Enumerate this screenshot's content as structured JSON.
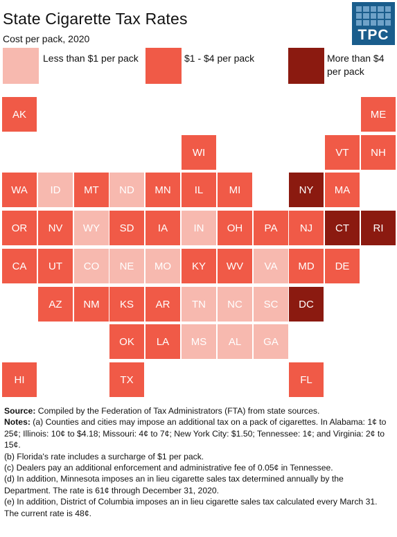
{
  "header": {
    "title": "State Cigarette Tax Rates",
    "subtitle": "Cost per pack, 2020"
  },
  "logo": {
    "text": "TPC"
  },
  "colors": {
    "low": "#f7b9af",
    "mid": "#f05a47",
    "high": "#8b1a10",
    "logo_bg": "#1a5d8c"
  },
  "legend": [
    {
      "label": "Less than $1 per pack",
      "level": "low"
    },
    {
      "label": "$1 - $4 per pack",
      "level": "mid"
    },
    {
      "label": "More than $4 per pack",
      "level": "high"
    }
  ],
  "states": [
    {
      "abbr": "AK",
      "level": "mid",
      "col": 0,
      "row": 0
    },
    {
      "abbr": "ME",
      "level": "mid",
      "col": 10,
      "row": 0
    },
    {
      "abbr": "WI",
      "level": "mid",
      "col": 5,
      "row": 1
    },
    {
      "abbr": "VT",
      "level": "mid",
      "col": 9,
      "row": 1
    },
    {
      "abbr": "NH",
      "level": "mid",
      "col": 10,
      "row": 1
    },
    {
      "abbr": "WA",
      "level": "mid",
      "col": 0,
      "row": 2
    },
    {
      "abbr": "ID",
      "level": "low",
      "col": 1,
      "row": 2
    },
    {
      "abbr": "MT",
      "level": "mid",
      "col": 2,
      "row": 2
    },
    {
      "abbr": "ND",
      "level": "low",
      "col": 3,
      "row": 2
    },
    {
      "abbr": "MN",
      "level": "mid",
      "col": 4,
      "row": 2
    },
    {
      "abbr": "IL",
      "level": "mid",
      "col": 5,
      "row": 2
    },
    {
      "abbr": "MI",
      "level": "mid",
      "col": 6,
      "row": 2
    },
    {
      "abbr": "NY",
      "level": "high",
      "col": 8,
      "row": 2
    },
    {
      "abbr": "MA",
      "level": "mid",
      "col": 9,
      "row": 2
    },
    {
      "abbr": "OR",
      "level": "mid",
      "col": 0,
      "row": 3
    },
    {
      "abbr": "NV",
      "level": "mid",
      "col": 1,
      "row": 3
    },
    {
      "abbr": "WY",
      "level": "low",
      "col": 2,
      "row": 3
    },
    {
      "abbr": "SD",
      "level": "mid",
      "col": 3,
      "row": 3
    },
    {
      "abbr": "IA",
      "level": "mid",
      "col": 4,
      "row": 3
    },
    {
      "abbr": "IN",
      "level": "low",
      "col": 5,
      "row": 3
    },
    {
      "abbr": "OH",
      "level": "mid",
      "col": 6,
      "row": 3
    },
    {
      "abbr": "PA",
      "level": "mid",
      "col": 7,
      "row": 3
    },
    {
      "abbr": "NJ",
      "level": "mid",
      "col": 8,
      "row": 3
    },
    {
      "abbr": "CT",
      "level": "high",
      "col": 9,
      "row": 3
    },
    {
      "abbr": "RI",
      "level": "high",
      "col": 10,
      "row": 3
    },
    {
      "abbr": "CA",
      "level": "mid",
      "col": 0,
      "row": 4
    },
    {
      "abbr": "UT",
      "level": "mid",
      "col": 1,
      "row": 4
    },
    {
      "abbr": "CO",
      "level": "low",
      "col": 2,
      "row": 4
    },
    {
      "abbr": "NE",
      "level": "low",
      "col": 3,
      "row": 4
    },
    {
      "abbr": "MO",
      "level": "low",
      "col": 4,
      "row": 4
    },
    {
      "abbr": "KY",
      "level": "mid",
      "col": 5,
      "row": 4
    },
    {
      "abbr": "WV",
      "level": "mid",
      "col": 6,
      "row": 4
    },
    {
      "abbr": "VA",
      "level": "low",
      "col": 7,
      "row": 4
    },
    {
      "abbr": "MD",
      "level": "mid",
      "col": 8,
      "row": 4
    },
    {
      "abbr": "DE",
      "level": "mid",
      "col": 9,
      "row": 4
    },
    {
      "abbr": "AZ",
      "level": "mid",
      "col": 1,
      "row": 5
    },
    {
      "abbr": "NM",
      "level": "mid",
      "col": 2,
      "row": 5
    },
    {
      "abbr": "KS",
      "level": "mid",
      "col": 3,
      "row": 5
    },
    {
      "abbr": "AR",
      "level": "mid",
      "col": 4,
      "row": 5
    },
    {
      "abbr": "TN",
      "level": "low",
      "col": 5,
      "row": 5
    },
    {
      "abbr": "NC",
      "level": "low",
      "col": 6,
      "row": 5
    },
    {
      "abbr": "SC",
      "level": "low",
      "col": 7,
      "row": 5
    },
    {
      "abbr": "DC",
      "level": "high",
      "col": 8,
      "row": 5
    },
    {
      "abbr": "OK",
      "level": "mid",
      "col": 3,
      "row": 6
    },
    {
      "abbr": "LA",
      "level": "mid",
      "col": 4,
      "row": 6
    },
    {
      "abbr": "MS",
      "level": "low",
      "col": 5,
      "row": 6
    },
    {
      "abbr": "AL",
      "level": "low",
      "col": 6,
      "row": 6
    },
    {
      "abbr": "GA",
      "level": "low",
      "col": 7,
      "row": 6
    },
    {
      "abbr": "HI",
      "level": "mid",
      "col": 0,
      "row": 7
    },
    {
      "abbr": "TX",
      "level": "mid",
      "col": 3,
      "row": 7
    },
    {
      "abbr": "FL",
      "level": "mid",
      "col": 8,
      "row": 7
    }
  ],
  "notes": {
    "source_label": "Source:",
    "source_text": " Compiled by the Federation of Tax Administrators (FTA) from state sources.",
    "notes_label": "Notes:",
    "notes_text": " (a) Counties and cities may impose an additional tax on a pack of cigarettes. In Alabama: 1¢ to 25¢; Illinois: 10¢ to $4.18; Missouri: 4¢ to 7¢; New York City: $1.50; Tennessee: 1¢; and Virginia: 2¢ to 15¢.",
    "b": "(b) Florida's rate includes a surcharge of $1 per pack.",
    "c": "(c) Dealers pay an additional enforcement and administrative fee of 0.05¢ in Tennessee.",
    "d": "(d) In addition, Minnesota imposes an in lieu cigarette sales tax determined annually by the Department. The rate is 61¢ through December 31, 2020.",
    "e": "(e) In addition, District of Columbia imposes an in lieu cigarette sales tax calculated every March 31. The current rate is 48¢."
  }
}
